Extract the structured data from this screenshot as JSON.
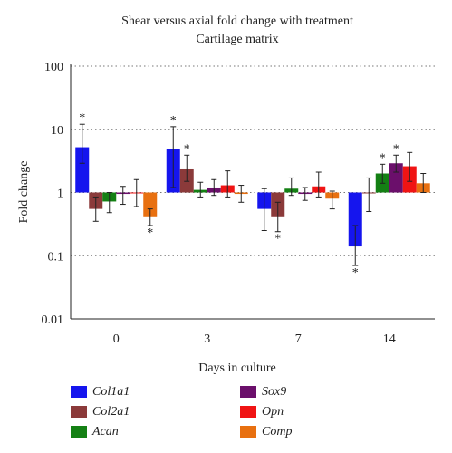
{
  "chart_data": {
    "type": "bar",
    "title": "Shear versus axial fold change with treatment",
    "subtitle": "Cartilage matrix",
    "xlabel": "Days in culture",
    "ylabel": "Fold change",
    "yscale": "log",
    "ylim": [
      0.01,
      100
    ],
    "yticks": [
      "0.01",
      "0.1",
      "1",
      "10",
      "100"
    ],
    "categories": [
      "0",
      "3",
      "7",
      "14"
    ],
    "grid": "dotted horizontal",
    "legend_position": "bottom",
    "baseline": 1,
    "series": [
      {
        "name": "Col1a1",
        "color": "#1515ee",
        "values": [
          5.2,
          4.8,
          0.55,
          0.14
        ],
        "err_low": [
          2.9,
          1.2,
          0.25,
          0.07
        ],
        "err_high": [
          12,
          11,
          1.15,
          0.3
        ],
        "significant": [
          true,
          true,
          false,
          true
        ]
      },
      {
        "name": "Col2a1",
        "color": "#8b3a3a",
        "values": [
          0.55,
          2.4,
          0.42,
          1.0
        ],
        "err_low": [
          0.35,
          1.5,
          0.24,
          0.5
        ],
        "err_high": [
          0.85,
          3.9,
          0.7,
          1.7
        ],
        "significant": [
          false,
          true,
          true,
          false
        ]
      },
      {
        "name": "Acan",
        "color": "#148014",
        "values": [
          0.72,
          1.1,
          1.15,
          2.0
        ],
        "err_low": [
          0.48,
          0.85,
          0.9,
          1.4
        ],
        "err_high": [
          1.0,
          1.45,
          1.7,
          2.8
        ],
        "significant": [
          false,
          false,
          false,
          true
        ]
      },
      {
        "name": "Sox9",
        "color": "#6b0f6b",
        "values": [
          0.95,
          1.2,
          0.95,
          2.9
        ],
        "err_low": [
          0.65,
          0.9,
          0.75,
          2.1
        ],
        "err_high": [
          1.25,
          1.6,
          1.2,
          3.9
        ],
        "significant": [
          false,
          false,
          false,
          true
        ]
      },
      {
        "name": "Opn",
        "color": "#f01414",
        "values": [
          1.0,
          1.3,
          1.25,
          2.6
        ],
        "err_low": [
          0.6,
          0.85,
          0.85,
          1.5
        ],
        "err_high": [
          1.6,
          2.2,
          2.1,
          4.3
        ],
        "significant": [
          false,
          false,
          false,
          false
        ]
      },
      {
        "name": "Comp",
        "color": "#e87010",
        "values": [
          0.42,
          0.95,
          0.8,
          1.4
        ],
        "err_low": [
          0.3,
          0.7,
          0.55,
          1.0
        ],
        "err_high": [
          0.55,
          1.3,
          1.05,
          2.0
        ],
        "significant": [
          true,
          false,
          false,
          false
        ]
      }
    ],
    "annotation_symbol": "*"
  }
}
